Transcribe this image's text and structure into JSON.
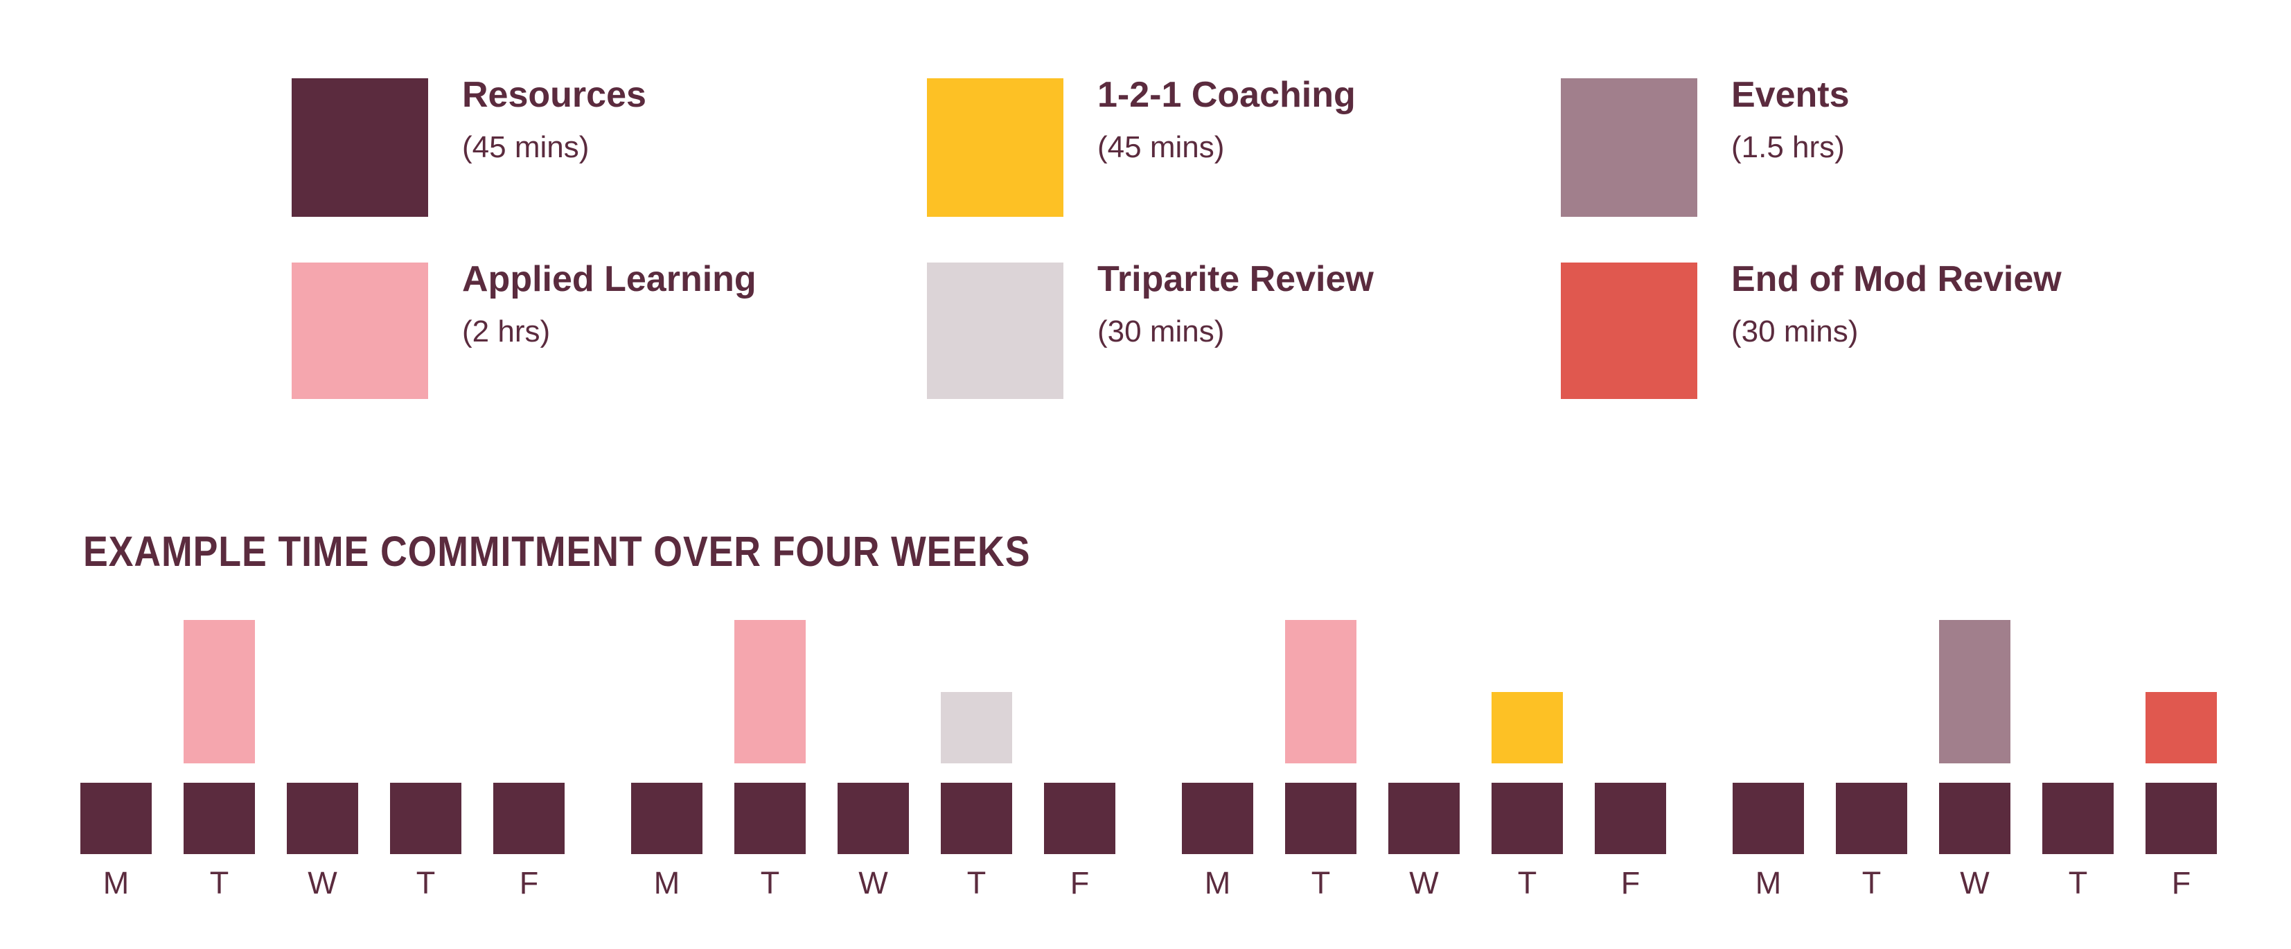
{
  "colors": {
    "background": "#ffffff",
    "text": "#5b2b3e",
    "resources": "#5b2b3e",
    "coaching": "#fdc125",
    "events": "#a17f8c",
    "applied_learning": "#f5a6ae",
    "triparite": "#dcd4d7",
    "end_of_mod": "#e0584f"
  },
  "legend": {
    "items": [
      {
        "key": "resources",
        "label": "Resources",
        "duration": "(45 mins)",
        "color": "#5b2b3e"
      },
      {
        "key": "coaching",
        "label": "1-2-1 Coaching",
        "duration": "(45 mins)",
        "color": "#fdc125"
      },
      {
        "key": "events",
        "label": "Events",
        "duration": "(1.5 hrs)",
        "color": "#a17f8c"
      },
      {
        "key": "applied_learning",
        "label": "Applied Learning",
        "duration": "(2 hrs)",
        "color": "#f5a6ae"
      },
      {
        "key": "triparite",
        "label": "Triparite Review",
        "duration": "(30 mins)",
        "color": "#dcd4d7"
      },
      {
        "key": "end_of_mod",
        "label": "End of Mod Review",
        "duration": "(30 mins)",
        "color": "#e0584f"
      }
    ]
  },
  "section": {
    "title": "EXAMPLE TIME COMMITMENT OVER FOUR WEEKS"
  },
  "chart_data": {
    "type": "bar",
    "title": "EXAMPLE TIME COMMITMENT OVER FOUR WEEKS",
    "x_axis": "weekdays over four consecutive weeks",
    "day_labels": [
      "M",
      "T",
      "W",
      "T",
      "F"
    ],
    "grid": false,
    "legend_position": "top",
    "base_series": {
      "key": "resources",
      "label": "Resources",
      "minutes_per_day": 45,
      "applies_to": "every weekday",
      "height_units": 1
    },
    "overlay_series": [
      {
        "key": "applied_learning",
        "label": "Applied Learning",
        "minutes": 120,
        "height_units": 2,
        "occurrences": [
          {
            "week": 1,
            "day": "T",
            "day_index": 1
          },
          {
            "week": 2,
            "day": "T",
            "day_index": 1
          },
          {
            "week": 3,
            "day": "T",
            "day_index": 1
          }
        ]
      },
      {
        "key": "triparite",
        "label": "Triparite Review",
        "minutes": 30,
        "height_units": 1,
        "occurrences": [
          {
            "week": 2,
            "day": "T",
            "day_index": 3
          }
        ]
      },
      {
        "key": "coaching",
        "label": "1-2-1 Coaching",
        "minutes": 45,
        "height_units": 1,
        "occurrences": [
          {
            "week": 3,
            "day": "T",
            "day_index": 3
          }
        ]
      },
      {
        "key": "events",
        "label": "Events",
        "minutes": 90,
        "height_units": 2,
        "occurrences": [
          {
            "week": 4,
            "day": "W",
            "day_index": 2
          }
        ]
      },
      {
        "key": "end_of_mod",
        "label": "End of Mod Review",
        "minutes": 30,
        "height_units": 1,
        "occurrences": [
          {
            "week": 4,
            "day": "F",
            "day_index": 4
          }
        ]
      }
    ],
    "weeks": [
      {
        "week": 1,
        "overlays": [
          null,
          "applied_learning",
          null,
          null,
          null
        ]
      },
      {
        "week": 2,
        "overlays": [
          null,
          "applied_learning",
          null,
          "triparite",
          null
        ]
      },
      {
        "week": 3,
        "overlays": [
          null,
          "applied_learning",
          null,
          "coaching",
          null
        ]
      },
      {
        "week": 4,
        "overlays": [
          null,
          null,
          "events",
          null,
          "end_of_mod"
        ]
      }
    ]
  }
}
